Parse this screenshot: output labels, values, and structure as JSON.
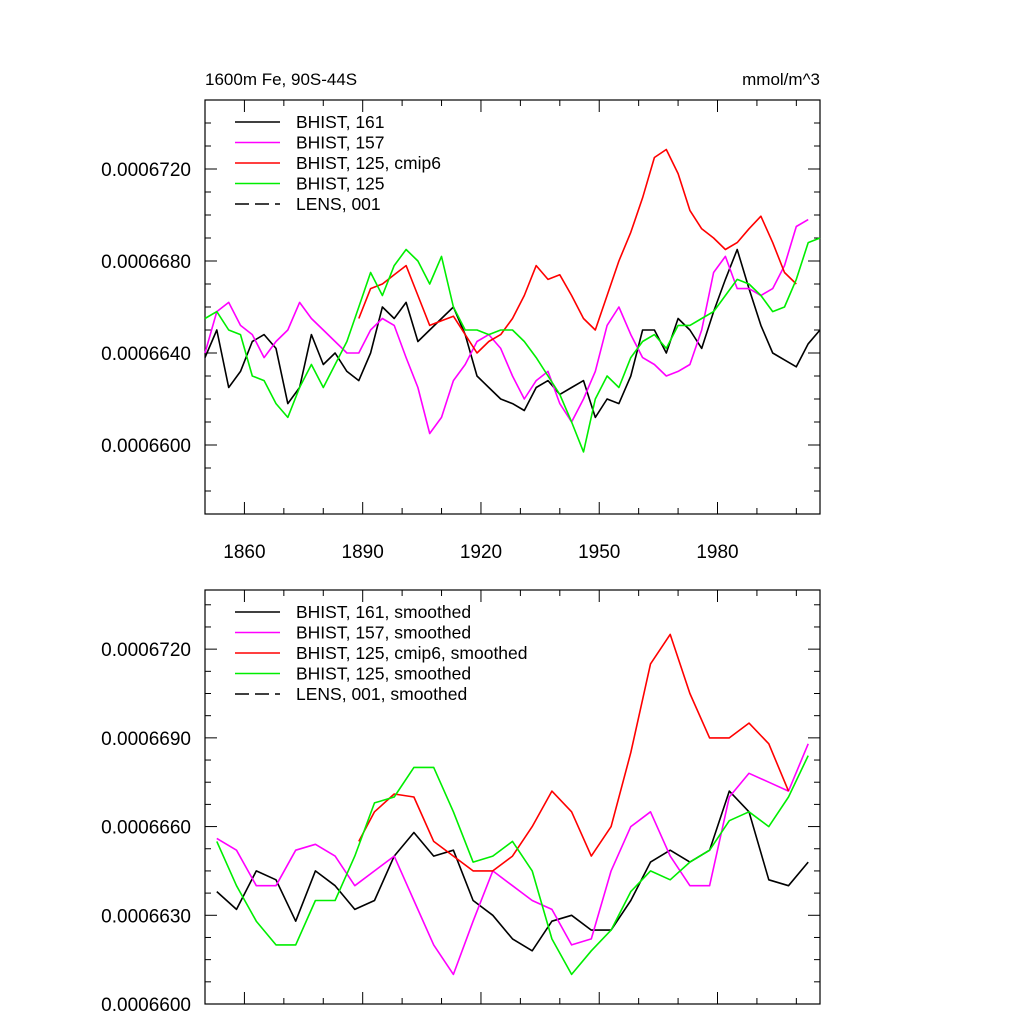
{
  "chart_data": [
    {
      "type": "line",
      "title": "1600m Fe, 90S-44S",
      "units": "mmol/m^3",
      "xlim": [
        1850,
        2006
      ],
      "ylim": [
        0.000657,
        0.000675
      ],
      "xticks": [
        1860,
        1890,
        1920,
        1950,
        1980
      ],
      "xtick_labels": [
        "1860",
        "1890",
        "1920",
        "1950",
        "1980"
      ],
      "yticks": [
        0.00066,
        0.000664,
        0.000668,
        0.000672
      ],
      "ytick_labels": [
        "0.0006600",
        "0.0006640",
        "0.0006680",
        "0.0006720"
      ],
      "legend": [
        {
          "label": "BHIST, 161",
          "color": "#000000",
          "dash": false
        },
        {
          "label": "BHIST, 157",
          "color": "#ff00ff",
          "dash": false
        },
        {
          "label": "BHIST, 125, cmip6",
          "color": "#ff0000",
          "dash": false
        },
        {
          "label": "BHIST, 125",
          "color": "#00ee00",
          "dash": false
        },
        {
          "label": "LENS, 001",
          "color": "#000000",
          "dash": true
        }
      ],
      "series": [
        {
          "name": "BHIST, 161",
          "color": "#000000",
          "x": [
            1850,
            1853,
            1856,
            1859,
            1862,
            1865,
            1868,
            1871,
            1874,
            1877,
            1880,
            1883,
            1886,
            1889,
            1892,
            1895,
            1898,
            1901,
            1904,
            1907,
            1910,
            1913,
            1916,
            1919,
            1922,
            1925,
            1928,
            1931,
            1934,
            1937,
            1940,
            1943,
            1946,
            1949,
            1952,
            1955,
            1958,
            1961,
            1964,
            1967,
            1970,
            1973,
            1976,
            1979,
            1982,
            1985,
            1988,
            1991,
            1994,
            1997,
            2000,
            2003,
            2006
          ],
          "y": [
            0.0006638,
            0.000665,
            0.0006625,
            0.0006632,
            0.0006645,
            0.0006648,
            0.0006642,
            0.0006618,
            0.0006625,
            0.0006648,
            0.0006635,
            0.000664,
            0.0006632,
            0.0006628,
            0.000664,
            0.000666,
            0.0006655,
            0.0006662,
            0.0006645,
            0.000665,
            0.0006655,
            0.000666,
            0.0006648,
            0.000663,
            0.0006625,
            0.000662,
            0.0006618,
            0.0006615,
            0.0006625,
            0.0006628,
            0.0006622,
            0.0006625,
            0.0006628,
            0.0006612,
            0.000662,
            0.0006618,
            0.000663,
            0.000665,
            0.000665,
            0.000664,
            0.0006655,
            0.000665,
            0.0006642,
            0.0006658,
            0.0006672,
            0.0006685,
            0.0006668,
            0.0006652,
            0.000664,
            0.0006637,
            0.0006634,
            0.0006644,
            0.000665
          ]
        },
        {
          "name": "BHIST, 157",
          "color": "#ff00ff",
          "x": [
            1850,
            1853,
            1856,
            1859,
            1862,
            1865,
            1868,
            1871,
            1874,
            1877,
            1880,
            1883,
            1886,
            1889,
            1892,
            1895,
            1898,
            1901,
            1904,
            1907,
            1910,
            1913,
            1916,
            1919,
            1922,
            1925,
            1928,
            1931,
            1934,
            1937,
            1940,
            1943,
            1946,
            1949,
            1952,
            1955,
            1958,
            1961,
            1964,
            1967,
            1970,
            1973,
            1976,
            1979,
            1982,
            1985,
            1988,
            1991,
            1994,
            1997,
            2000,
            2003
          ],
          "y": [
            0.000664,
            0.0006658,
            0.0006662,
            0.0006652,
            0.0006648,
            0.0006638,
            0.0006645,
            0.000665,
            0.0006662,
            0.0006655,
            0.000665,
            0.0006645,
            0.000664,
            0.000664,
            0.000665,
            0.0006655,
            0.0006652,
            0.0006638,
            0.0006625,
            0.0006605,
            0.0006612,
            0.0006628,
            0.0006635,
            0.0006645,
            0.0006648,
            0.0006642,
            0.000663,
            0.000662,
            0.0006628,
            0.0006632,
            0.0006618,
            0.000661,
            0.000662,
            0.0006632,
            0.0006652,
            0.000666,
            0.0006648,
            0.0006638,
            0.0006635,
            0.000663,
            0.0006632,
            0.0006635,
            0.000665,
            0.0006675,
            0.0006682,
            0.0006668,
            0.0006668,
            0.0006665,
            0.0006668,
            0.0006678,
            0.0006695,
            0.0006698
          ]
        },
        {
          "name": "BHIST, 125, cmip6",
          "color": "#ff0000",
          "x": [
            1889,
            1892,
            1895,
            1898,
            1901,
            1904,
            1907,
            1910,
            1913,
            1916,
            1919,
            1922,
            1925,
            1928,
            1931,
            1934,
            1937,
            1940,
            1943,
            1946,
            1949,
            1952,
            1955,
            1958,
            1961,
            1964,
            1967,
            1970,
            1973,
            1976,
            1979,
            1982,
            1985,
            1988,
            1991,
            1994,
            1997,
            2000
          ],
          "y": [
            0.0006655,
            0.0006668,
            0.000667,
            0.0006674,
            0.0006678,
            0.0006665,
            0.0006652,
            0.0006654,
            0.0006656,
            0.0006648,
            0.000664,
            0.0006645,
            0.0006648,
            0.0006655,
            0.0006665,
            0.0006678,
            0.0006672,
            0.0006674,
            0.0006665,
            0.0006655,
            0.000665,
            0.0006665,
            0.000668,
            0.00066925,
            0.00067075,
            0.0006725,
            0.00067285,
            0.0006718,
            0.0006702,
            0.0006694,
            0.000669,
            0.0006685,
            0.0006688,
            0.0006694,
            0.00066995,
            0.0006688,
            0.0006675,
            0.000667
          ]
        },
        {
          "name": "BHIST, 125",
          "color": "#00ee00",
          "x": [
            1850,
            1853,
            1856,
            1859,
            1862,
            1865,
            1868,
            1871,
            1874,
            1877,
            1880,
            1883,
            1886,
            1889,
            1892,
            1895,
            1898,
            1901,
            1904,
            1907,
            1910,
            1913,
            1916,
            1919,
            1922,
            1925,
            1928,
            1931,
            1934,
            1937,
            1940,
            1943,
            1946,
            1949,
            1952,
            1955,
            1958,
            1961,
            1964,
            1967,
            1970,
            1973,
            1976,
            1979,
            1982,
            1985,
            1988,
            1991,
            1994,
            1997,
            2000,
            2003,
            2006
          ],
          "y": [
            0.0006655,
            0.0006658,
            0.000665,
            0.0006648,
            0.000663,
            0.0006628,
            0.0006618,
            0.0006612,
            0.0006625,
            0.0006635,
            0.0006625,
            0.0006635,
            0.0006645,
            0.000666,
            0.0006675,
            0.0006665,
            0.0006678,
            0.0006685,
            0.000668,
            0.000667,
            0.0006682,
            0.000666,
            0.000665,
            0.000665,
            0.0006648,
            0.000665,
            0.000665,
            0.0006645,
            0.0006638,
            0.000663,
            0.0006622,
            0.000661,
            0.0006597,
            0.000662,
            0.000663,
            0.0006625,
            0.0006638,
            0.0006645,
            0.0006648,
            0.0006642,
            0.0006652,
            0.0006652,
            0.0006655,
            0.0006658,
            0.0006665,
            0.0006672,
            0.000667,
            0.0006665,
            0.0006658,
            0.000666,
            0.0006672,
            0.0006688,
            0.000669
          ]
        }
      ]
    },
    {
      "type": "line",
      "title": "",
      "xlim": [
        1850,
        2006
      ],
      "ylim": [
        0.00066,
        0.000674
      ],
      "xticks": [
        1860,
        1890,
        1920,
        1950,
        1980
      ],
      "yticks": [
        0.00066,
        0.000663,
        0.000666,
        0.000669,
        0.000672
      ],
      "ytick_labels": [
        "0.0006600",
        "0.0006630",
        "0.0006660",
        "0.0006690",
        "0.0006720"
      ],
      "legend": [
        {
          "label": "BHIST, 161, smoothed",
          "color": "#000000",
          "dash": false
        },
        {
          "label": "BHIST, 157, smoothed",
          "color": "#ff00ff",
          "dash": false
        },
        {
          "label": "BHIST, 125, cmip6, smoothed",
          "color": "#ff0000",
          "dash": false
        },
        {
          "label": "BHIST, 125, smoothed",
          "color": "#00ee00",
          "dash": false
        },
        {
          "label": "LENS, 001, smoothed",
          "color": "#000000",
          "dash": true
        }
      ],
      "series": [
        {
          "name": "BHIST, 161, smoothed",
          "color": "#000000",
          "x": [
            1853,
            1858,
            1863,
            1868,
            1873,
            1878,
            1883,
            1888,
            1893,
            1898,
            1903,
            1908,
            1913,
            1918,
            1923,
            1928,
            1933,
            1938,
            1943,
            1948,
            1953,
            1958,
            1963,
            1968,
            1973,
            1978,
            1983,
            1988,
            1993,
            1998,
            2003
          ],
          "y": [
            0.0006638,
            0.0006632,
            0.0006645,
            0.0006642,
            0.0006628,
            0.0006645,
            0.000664,
            0.0006632,
            0.0006635,
            0.000665,
            0.0006658,
            0.000665,
            0.0006652,
            0.0006635,
            0.000663,
            0.0006622,
            0.0006618,
            0.0006628,
            0.000663,
            0.0006625,
            0.0006625,
            0.0006635,
            0.0006648,
            0.0006652,
            0.0006648,
            0.0006652,
            0.0006672,
            0.0006665,
            0.0006642,
            0.000664,
            0.0006648
          ]
        },
        {
          "name": "BHIST, 157, smoothed",
          "color": "#ff00ff",
          "x": [
            1853,
            1858,
            1863,
            1868,
            1873,
            1878,
            1883,
            1888,
            1893,
            1898,
            1903,
            1908,
            1913,
            1918,
            1923,
            1928,
            1933,
            1938,
            1943,
            1948,
            1953,
            1958,
            1963,
            1968,
            1973,
            1978,
            1983,
            1988,
            1993,
            1998,
            2003
          ],
          "y": [
            0.0006656,
            0.0006652,
            0.000664,
            0.000664,
            0.0006652,
            0.0006654,
            0.000665,
            0.000664,
            0.0006645,
            0.000665,
            0.0006635,
            0.000662,
            0.000661,
            0.0006628,
            0.0006645,
            0.000664,
            0.0006635,
            0.0006632,
            0.000662,
            0.0006622,
            0.0006645,
            0.000666,
            0.0006665,
            0.000665,
            0.000664,
            0.000664,
            0.000667,
            0.0006678,
            0.0006675,
            0.0006672,
            0.0006688
          ]
        },
        {
          "name": "BHIST, 125, cmip6, smoothed",
          "color": "#ff0000",
          "x": [
            1889,
            1893,
            1898,
            1903,
            1908,
            1913,
            1918,
            1923,
            1928,
            1933,
            1938,
            1943,
            1948,
            1953,
            1958,
            1963,
            1968,
            1973,
            1978,
            1983,
            1988,
            1993,
            1998
          ],
          "y": [
            0.0006655,
            0.0006665,
            0.0006671,
            0.000667,
            0.0006655,
            0.000665,
            0.0006645,
            0.0006645,
            0.000665,
            0.000666,
            0.0006672,
            0.0006665,
            0.000665,
            0.000666,
            0.0006685,
            0.0006715,
            0.0006725,
            0.0006705,
            0.000669,
            0.000669,
            0.0006695,
            0.0006688,
            0.0006672
          ]
        },
        {
          "name": "BHIST, 125, smoothed",
          "color": "#00ee00",
          "x": [
            1853,
            1858,
            1863,
            1868,
            1873,
            1878,
            1883,
            1888,
            1893,
            1898,
            1903,
            1908,
            1913,
            1918,
            1923,
            1928,
            1933,
            1938,
            1943,
            1948,
            1953,
            1958,
            1963,
            1968,
            1973,
            1978,
            1983,
            1988,
            1993,
            1998,
            2003
          ],
          "y": [
            0.0006655,
            0.000664,
            0.0006628,
            0.000662,
            0.000662,
            0.0006635,
            0.0006635,
            0.000665,
            0.0006668,
            0.000667,
            0.000668,
            0.000668,
            0.0006665,
            0.0006648,
            0.000665,
            0.0006655,
            0.0006645,
            0.0006622,
            0.000661,
            0.0006618,
            0.0006625,
            0.0006638,
            0.0006645,
            0.0006642,
            0.0006648,
            0.0006652,
            0.0006662,
            0.0006665,
            0.000666,
            0.000667,
            0.0006684
          ]
        }
      ]
    }
  ]
}
